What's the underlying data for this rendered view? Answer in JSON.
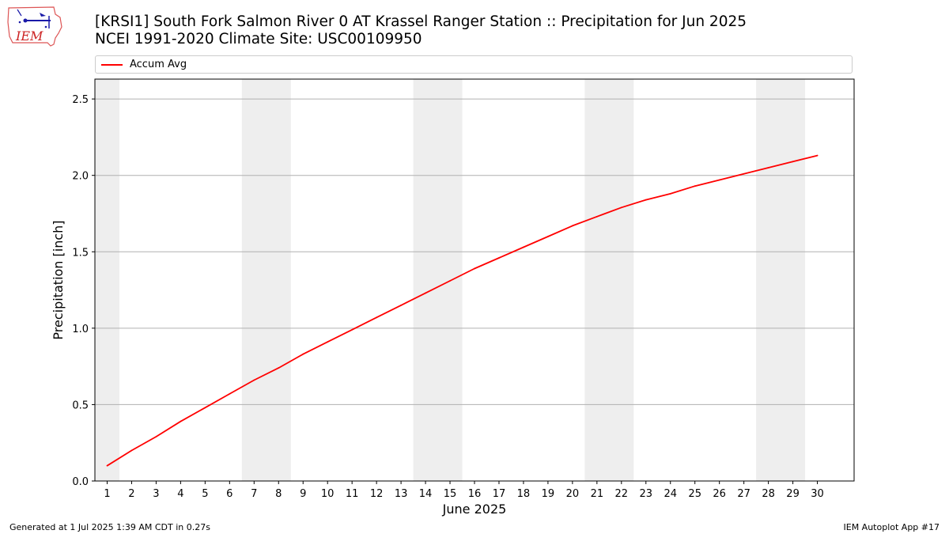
{
  "header": {
    "title_line1": "[KRSI1] South Fork Salmon River 0 AT Krassel Ranger Station :: Precipitation for Jun 2025",
    "title_line2": "NCEI 1991-2020 Climate Site: USC00109950",
    "logo_text": "IEM"
  },
  "footer": {
    "left": "Generated at 1 Jul 2025 1:39 AM CDT in 0.27s",
    "right": "IEM Autoplot App #17"
  },
  "colors": {
    "series": "#ff0000",
    "weekend_band": "#eeeeee",
    "grid": "#b0b0b0"
  },
  "chart_data": {
    "type": "line",
    "xlabel": "June 2025",
    "ylabel": "Precipitation [inch]",
    "xlim": [
      0.5,
      31.5
    ],
    "ylim": [
      0,
      2.63
    ],
    "x_ticks": [
      1,
      2,
      3,
      4,
      5,
      6,
      7,
      8,
      9,
      10,
      11,
      12,
      13,
      14,
      15,
      16,
      17,
      18,
      19,
      20,
      21,
      22,
      23,
      24,
      25,
      26,
      27,
      28,
      29,
      30
    ],
    "y_ticks": [
      0.0,
      0.5,
      1.0,
      1.5,
      2.0,
      2.5
    ],
    "y_tick_labels": [
      "0.0",
      "0.5",
      "1.0",
      "1.5",
      "2.0",
      "2.5"
    ],
    "grid": "horizontal",
    "legend_position": "top",
    "weekend_bands": [
      [
        0.5,
        1.5
      ],
      [
        6.5,
        8.5
      ],
      [
        13.5,
        15.5
      ],
      [
        20.5,
        22.5
      ],
      [
        27.5,
        29.5
      ]
    ],
    "series": [
      {
        "name": "Accum Avg",
        "x": [
          1,
          2,
          3,
          4,
          5,
          6,
          7,
          8,
          9,
          10,
          11,
          12,
          13,
          14,
          15,
          16,
          17,
          18,
          19,
          20,
          21,
          22,
          23,
          24,
          25,
          26,
          27,
          28,
          29,
          30
        ],
        "values": [
          0.1,
          0.2,
          0.29,
          0.39,
          0.48,
          0.57,
          0.66,
          0.74,
          0.83,
          0.91,
          0.99,
          1.07,
          1.15,
          1.23,
          1.31,
          1.39,
          1.46,
          1.53,
          1.6,
          1.67,
          1.73,
          1.79,
          1.84,
          1.88,
          1.93,
          1.97,
          2.01,
          2.05,
          2.09,
          2.13
        ]
      }
    ]
  }
}
